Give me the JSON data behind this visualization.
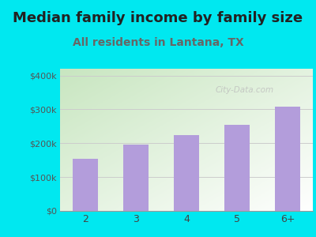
{
  "title": "Median family income by family size",
  "subtitle": "All residents in Lantana, TX",
  "categories": [
    "2",
    "3",
    "4",
    "5",
    "6+"
  ],
  "values": [
    155000,
    197000,
    225000,
    255000,
    308000
  ],
  "bar_color": "#b39ddb",
  "background_outer": "#00e8f0",
  "gradient_top_left": "#c8e6c0",
  "gradient_bottom_right": "#f5fff5",
  "title_color": "#222222",
  "subtitle_color": "#666666",
  "ytick_labels": [
    "$0",
    "$100k",
    "$200k",
    "$300k",
    "$400k"
  ],
  "ytick_values": [
    0,
    100000,
    200000,
    300000,
    400000
  ],
  "ylim": [
    0,
    420000
  ],
  "title_fontsize": 13,
  "subtitle_fontsize": 10,
  "watermark": "City-Data.com",
  "watermark_color": "#bbbbbb",
  "grid_color": "#cccccc"
}
